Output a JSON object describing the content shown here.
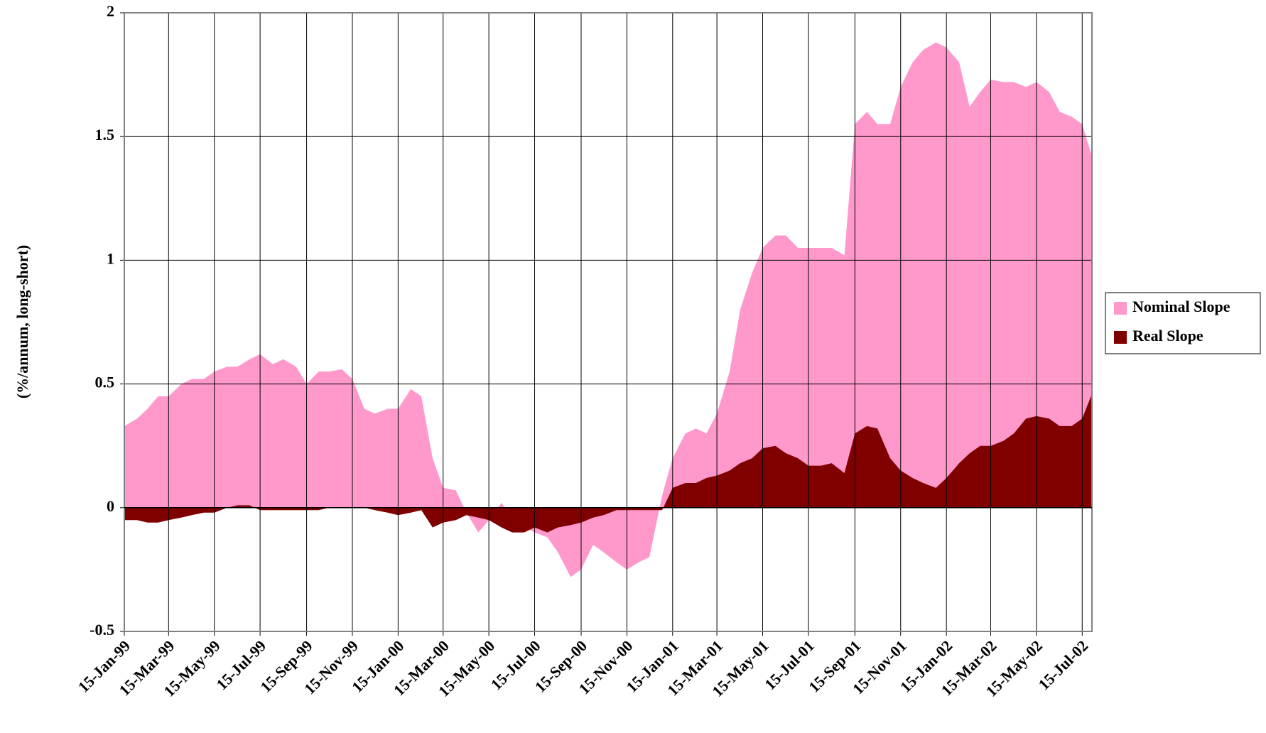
{
  "chart_data": {
    "type": "area",
    "y_label": "(%/annum, long-short)",
    "x": [
      "1999-01-15",
      "1999-02-01",
      "1999-02-15",
      "1999-03-01",
      "1999-03-15",
      "1999-04-01",
      "1999-04-15",
      "1999-05-01",
      "1999-05-15",
      "1999-06-01",
      "1999-06-15",
      "1999-07-01",
      "1999-07-15",
      "1999-08-01",
      "1999-08-15",
      "1999-09-01",
      "1999-09-15",
      "1999-10-01",
      "1999-10-15",
      "1999-11-01",
      "1999-11-15",
      "1999-12-01",
      "1999-12-15",
      "2000-01-01",
      "2000-01-15",
      "2000-02-01",
      "2000-02-15",
      "2000-03-01",
      "2000-03-15",
      "2000-04-01",
      "2000-04-15",
      "2000-05-01",
      "2000-05-15",
      "2000-06-01",
      "2000-06-15",
      "2000-07-01",
      "2000-07-15",
      "2000-08-01",
      "2000-08-15",
      "2000-09-01",
      "2000-09-15",
      "2000-10-01",
      "2000-10-15",
      "2000-11-01",
      "2000-11-15",
      "2000-12-01",
      "2000-12-15",
      "2001-01-01",
      "2001-01-15",
      "2001-02-01",
      "2001-02-15",
      "2001-03-01",
      "2001-03-15",
      "2001-04-01",
      "2001-04-15",
      "2001-05-01",
      "2001-05-15",
      "2001-06-01",
      "2001-06-15",
      "2001-07-01",
      "2001-07-15",
      "2001-08-01",
      "2001-08-15",
      "2001-09-01",
      "2001-09-15",
      "2001-10-01",
      "2001-10-15",
      "2001-11-01",
      "2001-11-15",
      "2001-12-01",
      "2001-12-15",
      "2002-01-01",
      "2002-01-15",
      "2002-02-01",
      "2002-02-15",
      "2002-03-01",
      "2002-03-15",
      "2002-04-01",
      "2002-04-15",
      "2002-05-01",
      "2002-05-15",
      "2002-06-01",
      "2002-06-15",
      "2002-07-01",
      "2002-07-15",
      "2002-07-28"
    ],
    "series": [
      {
        "name": "Nominal Slope",
        "color": "#ff99cc",
        "values": [
          0.33,
          0.36,
          0.4,
          0.45,
          0.45,
          0.5,
          0.52,
          0.52,
          0.55,
          0.57,
          0.57,
          0.6,
          0.62,
          0.58,
          0.6,
          0.57,
          0.5,
          0.55,
          0.55,
          0.56,
          0.52,
          0.4,
          0.38,
          0.4,
          0.4,
          0.48,
          0.45,
          0.2,
          0.08,
          0.07,
          -0.02,
          -0.1,
          -0.05,
          0.02,
          -0.05,
          -0.08,
          -0.1,
          -0.12,
          -0.18,
          -0.28,
          -0.25,
          -0.15,
          -0.18,
          -0.22,
          -0.25,
          -0.22,
          -0.2,
          0.05,
          0.2,
          0.3,
          0.32,
          0.3,
          0.38,
          0.55,
          0.8,
          0.95,
          1.05,
          1.1,
          1.1,
          1.05,
          1.05,
          1.05,
          1.05,
          1.02,
          1.55,
          1.6,
          1.55,
          1.55,
          1.7,
          1.8,
          1.85,
          1.88,
          1.86,
          1.8,
          1.62,
          1.68,
          1.73,
          1.72,
          1.72,
          1.7,
          1.72,
          1.68,
          1.6,
          1.58,
          1.55,
          1.42
        ]
      },
      {
        "name": "Real Slope",
        "color": "#800000",
        "values": [
          -0.05,
          -0.05,
          -0.06,
          -0.06,
          -0.05,
          -0.04,
          -0.03,
          -0.02,
          -0.02,
          0,
          0.01,
          0.01,
          -0.01,
          -0.01,
          -0.01,
          -0.01,
          -0.01,
          -0.01,
          0,
          0,
          0,
          0,
          -0.01,
          -0.02,
          -0.03,
          -0.02,
          -0.01,
          -0.08,
          -0.06,
          -0.05,
          -0.03,
          -0.04,
          -0.05,
          -0.08,
          -0.1,
          -0.1,
          -0.08,
          -0.1,
          -0.08,
          -0.07,
          -0.06,
          -0.04,
          -0.03,
          -0.01,
          -0.01,
          -0.01,
          -0.01,
          -0.01,
          0.08,
          0.1,
          0.1,
          0.12,
          0.13,
          0.15,
          0.18,
          0.2,
          0.24,
          0.25,
          0.22,
          0.2,
          0.17,
          0.17,
          0.18,
          0.14,
          0.3,
          0.33,
          0.32,
          0.2,
          0.15,
          0.12,
          0.1,
          0.08,
          0.12,
          0.18,
          0.22,
          0.25,
          0.25,
          0.27,
          0.3,
          0.36,
          0.37,
          0.36,
          0.33,
          0.33,
          0.36,
          0.46
        ]
      }
    ],
    "xlim": [
      "1999-01-15",
      "2002-07-28"
    ],
    "xticks": [
      {
        "value": "1999-01-15",
        "label": "15-Jan-99"
      },
      {
        "value": "1999-03-15",
        "label": "15-Mar-99"
      },
      {
        "value": "1999-05-15",
        "label": "15-May-99"
      },
      {
        "value": "1999-07-15",
        "label": "15-Jul-99"
      },
      {
        "value": "1999-09-15",
        "label": "15-Sep-99"
      },
      {
        "value": "1999-11-15",
        "label": "15-Nov-99"
      },
      {
        "value": "2000-01-15",
        "label": "15-Jan-00"
      },
      {
        "value": "2000-03-15",
        "label": "15-Mar-00"
      },
      {
        "value": "2000-05-15",
        "label": "15-May-00"
      },
      {
        "value": "2000-07-15",
        "label": "15-Jul-00"
      },
      {
        "value": "2000-09-15",
        "label": "15-Sep-00"
      },
      {
        "value": "2000-11-15",
        "label": "15-Nov-00"
      },
      {
        "value": "2001-01-15",
        "label": "15-Jan-01"
      },
      {
        "value": "2001-03-15",
        "label": "15-Mar-01"
      },
      {
        "value": "2001-05-15",
        "label": "15-May-01"
      },
      {
        "value": "2001-07-15",
        "label": "15-Jul-01"
      },
      {
        "value": "2001-09-15",
        "label": "15-Sep-01"
      },
      {
        "value": "2001-11-15",
        "label": "15-Nov-01"
      },
      {
        "value": "2002-01-15",
        "label": "15-Jan-02"
      },
      {
        "value": "2002-03-15",
        "label": "15-Mar-02"
      },
      {
        "value": "2002-05-15",
        "label": "15-May-02"
      },
      {
        "value": "2002-07-15",
        "label": "15-Jul-02"
      }
    ],
    "ylim": [
      -0.5,
      2
    ],
    "yticks": [
      -0.5,
      0,
      0.5,
      1,
      1.5,
      2
    ],
    "grid": true,
    "legend": "right"
  }
}
